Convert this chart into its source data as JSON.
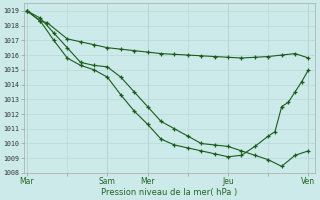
{
  "background_color": "#cdeaea",
  "grid_color": "#b8d8d8",
  "line_color": "#1a5c1a",
  "marker_color": "#1a5c1a",
  "xlabel_text": "Pression niveau de la mer( hPa )",
  "ylim": [
    1008,
    1019.5
  ],
  "yticks": [
    1008,
    1009,
    1010,
    1011,
    1012,
    1013,
    1014,
    1015,
    1016,
    1017,
    1018,
    1019
  ],
  "xtick_labels": [
    "Mar",
    "",
    "Sam",
    "Mer",
    "",
    "Jeu",
    "",
    "Ven"
  ],
  "xtick_positions": [
    0,
    6,
    12,
    18,
    24,
    30,
    36,
    42
  ],
  "vlines": [
    0,
    12,
    18,
    30,
    42
  ],
  "series1_x": [
    0,
    2,
    3,
    6,
    8,
    10,
    12,
    14,
    16,
    18,
    20,
    22,
    24,
    26,
    28,
    30,
    32,
    34,
    36,
    38,
    40,
    42
  ],
  "series1_y": [
    1019.0,
    1018.3,
    1018.2,
    1017.1,
    1016.9,
    1016.7,
    1016.5,
    1016.4,
    1016.3,
    1016.2,
    1016.1,
    1016.05,
    1016.0,
    1015.95,
    1015.9,
    1015.85,
    1015.8,
    1015.85,
    1015.9,
    1016.0,
    1016.1,
    1015.8
  ],
  "series2_x": [
    0,
    2,
    4,
    6,
    8,
    10,
    12,
    14,
    16,
    18,
    20,
    22,
    24,
    26,
    28,
    30,
    32,
    34,
    36,
    38,
    40,
    42
  ],
  "series2_y": [
    1019.0,
    1018.5,
    1017.5,
    1016.5,
    1015.5,
    1015.3,
    1015.2,
    1014.5,
    1013.5,
    1012.5,
    1011.5,
    1011.0,
    1010.5,
    1010.0,
    1009.9,
    1009.8,
    1009.5,
    1009.2,
    1008.9,
    1008.45,
    1009.2,
    1009.5
  ],
  "series3_x": [
    0,
    2,
    4,
    6,
    8,
    10,
    12,
    14,
    16,
    18,
    20,
    22,
    24,
    26,
    28,
    30,
    32,
    34,
    36,
    37,
    38,
    39,
    40,
    41,
    42
  ],
  "series3_y": [
    1019.0,
    1018.3,
    1017.0,
    1015.8,
    1015.3,
    1015.0,
    1014.5,
    1013.3,
    1012.2,
    1011.3,
    1010.3,
    1009.9,
    1009.7,
    1009.5,
    1009.3,
    1009.1,
    1009.2,
    1009.8,
    1010.5,
    1010.8,
    1012.5,
    1012.8,
    1013.5,
    1014.2,
    1015.0
  ]
}
